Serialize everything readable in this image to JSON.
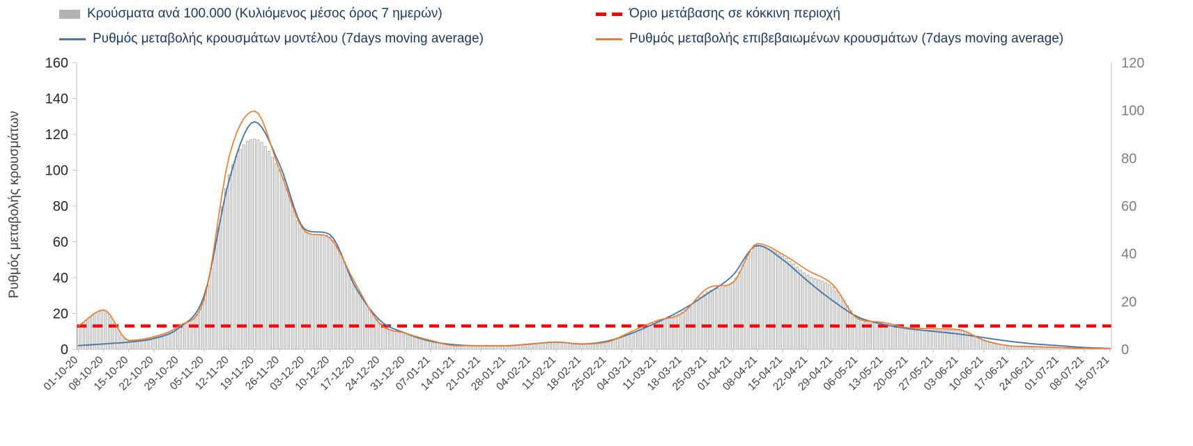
{
  "colors": {
    "bars_fill": "#ededed",
    "bars_stroke": "#969696",
    "bars_swatch": "#b3b3b3",
    "model": "#4a76a8",
    "confirmed": "#ED7D31",
    "threshold": "#FF0000",
    "axis_line": "#bfbfbf",
    "tick_left": "#262626",
    "tick_right": "#7f7f7f",
    "tick_x": "#404040",
    "legend_text": "#1F3864"
  },
  "chart_data": {
    "type": "line",
    "title": "",
    "xlabel": "",
    "ylabel_left": "Ρυθμός μεταβολής κρουσμάτων",
    "legend_position": "top",
    "grid": false,
    "axes": {
      "left": {
        "min": 0,
        "max": 160,
        "step": 20
      },
      "right": {
        "min": 0,
        "max": 120,
        "step": 20
      }
    },
    "categories": [
      "01-10-20",
      "08-10-20",
      "15-10-20",
      "22-10-20",
      "29-10-20",
      "05-11-20",
      "12-11-20",
      "19-11-20",
      "26-11-20",
      "03-12-20",
      "10-12-20",
      "17-12-20",
      "24-12-20",
      "31-12-20",
      "07-01-21",
      "14-01-21",
      "21-01-21",
      "28-01-21",
      "04-02-21",
      "11-02-21",
      "18-02-21",
      "25-02-21",
      "04-03-21",
      "11-03-21",
      "18-03-21",
      "25-03-21",
      "01-04-21",
      "08-04-21",
      "15-04-21",
      "22-04-21",
      "29-04-21",
      "06-05-21",
      "13-05-21",
      "20-05-21",
      "27-05-21",
      "03-06-21",
      "10-06-21",
      "17-06-21",
      "24-06-21",
      "01-07-21",
      "08-07-21",
      "15-07-21"
    ],
    "series": [
      {
        "role": "bars",
        "name": "Κρούσματα ανά 100.000 (Κυλιόμενος μέσος όρος 7 ημερών)",
        "kind": "bar",
        "axis": "right",
        "values": [
          10,
          16,
          3.5,
          5,
          9.5,
          21,
          73,
          88,
          75,
          49,
          47,
          27,
          11,
          6.5,
          3.5,
          1.5,
          1.5,
          1.5,
          2,
          3,
          2,
          3,
          6.5,
          11.5,
          15.5,
          24,
          28,
          43,
          39,
          31,
          26,
          13,
          10.5,
          8.5,
          8,
          8,
          4,
          1.5,
          1,
          0.7,
          0.4,
          0.3
        ]
      },
      {
        "role": "model",
        "name": "Ρυθμός μεταβολής κρουσμάτων μοντέλου (7days moving average)",
        "kind": "line",
        "axis": "left",
        "values": [
          2,
          3,
          4,
          6,
          12,
          30,
          95,
          127,
          103,
          67,
          64,
          35,
          16,
          9,
          4.5,
          2.5,
          2,
          2,
          3,
          4,
          3,
          4.5,
          9,
          15,
          22,
          31,
          41,
          58,
          50,
          38,
          27,
          18,
          14,
          11.5,
          10,
          8.5,
          6.5,
          4.5,
          3,
          2,
          1,
          0.5
        ]
      },
      {
        "role": "confirmed",
        "name": "Ρυθμός μεταβολής επιβεβαιωμένων κρουσμάτων (7days moving average)",
        "kind": "line",
        "axis": "left",
        "values": [
          13,
          22,
          5,
          7,
          13,
          28,
          108,
          133,
          100,
          66,
          62,
          37,
          14,
          9,
          5,
          2,
          2,
          2,
          3,
          4,
          3,
          4,
          10,
          16,
          20,
          34,
          37,
          59,
          53,
          44,
          36,
          17,
          15,
          12,
          11.5,
          11,
          5,
          2,
          1.5,
          1,
          0.5,
          0.5
        ]
      },
      {
        "role": "threshold",
        "name": "Όριο μετάβασης σε κόκκινη περιοχή",
        "kind": "threshold",
        "axis": "left",
        "value": 13
      }
    ]
  }
}
